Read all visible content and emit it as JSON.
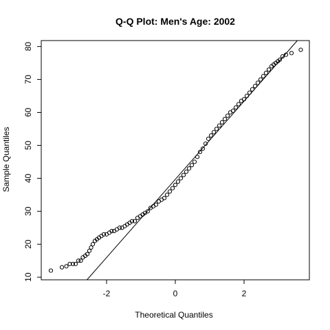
{
  "chart_data": {
    "type": "scatter",
    "title": "Q-Q Plot: Men's Age:  2002",
    "xlabel": "Theoretical Quantiles",
    "ylabel": "Sample Quantiles",
    "xlim": [
      -3.9,
      3.9
    ],
    "ylim": [
      9.2,
      81.8
    ],
    "x_ticks": [
      -2,
      0,
      2
    ],
    "y_ticks": [
      10,
      20,
      30,
      40,
      50,
      60,
      70,
      80
    ],
    "x_tick_labels": [
      "-2",
      "0",
      "2"
    ],
    "y_tick_labels": [
      "10",
      "20",
      "30",
      "40",
      "50",
      "60",
      "70",
      "80"
    ],
    "grid": false,
    "legend": "none",
    "point_marker": "open-circle",
    "point_color": "#000000",
    "reference_line": {
      "x": [
        -2.57,
        3.55
      ],
      "y": [
        9.2,
        81.8
      ]
    },
    "series": [
      {
        "points": [
          [
            -3.62,
            12.0
          ],
          [
            -3.3,
            13.0
          ],
          [
            -3.17,
            13.3
          ],
          [
            -3.07,
            14.0
          ],
          [
            -2.98,
            14.0
          ],
          [
            -2.9,
            14.0
          ],
          [
            -2.82,
            15.0
          ],
          [
            -2.75,
            15.0
          ],
          [
            -2.69,
            16.0
          ],
          [
            -2.62,
            16.5
          ],
          [
            -2.56,
            17.0
          ],
          [
            -2.5,
            18.0
          ],
          [
            -2.45,
            19.0
          ],
          [
            -2.4,
            20.0
          ],
          [
            -2.34,
            21.0
          ],
          [
            -2.28,
            21.5
          ],
          [
            -2.22,
            22.0
          ],
          [
            -2.15,
            22.5
          ],
          [
            -2.08,
            23.0
          ],
          [
            -2.0,
            23.0
          ],
          [
            -1.92,
            23.5
          ],
          [
            -1.85,
            24.0
          ],
          [
            -1.78,
            24.0
          ],
          [
            -1.7,
            24.5
          ],
          [
            -1.62,
            25.0
          ],
          [
            -1.55,
            25.0
          ],
          [
            -1.47,
            25.5
          ],
          [
            -1.4,
            26.0
          ],
          [
            -1.33,
            26.5
          ],
          [
            -1.26,
            27.0
          ],
          [
            -1.18,
            27.0
          ],
          [
            -1.1,
            28.0
          ],
          [
            -1.02,
            28.5
          ],
          [
            -0.95,
            29.0
          ],
          [
            -0.88,
            29.5
          ],
          [
            -0.8,
            30.0
          ],
          [
            -0.72,
            31.0
          ],
          [
            -0.64,
            31.5
          ],
          [
            -0.56,
            32.0
          ],
          [
            -0.48,
            33.0
          ],
          [
            -0.4,
            33.5
          ],
          [
            -0.32,
            34.0
          ],
          [
            -0.24,
            35.0
          ],
          [
            -0.16,
            36.0
          ],
          [
            -0.08,
            37.0
          ],
          [
            0.0,
            38.0
          ],
          [
            0.08,
            39.0
          ],
          [
            0.16,
            40.0
          ],
          [
            0.24,
            41.0
          ],
          [
            0.32,
            42.0
          ],
          [
            0.4,
            43.0
          ],
          [
            0.48,
            44.0
          ],
          [
            0.56,
            45.0
          ],
          [
            0.64,
            46.5
          ],
          [
            0.72,
            48.0
          ],
          [
            0.8,
            49.0
          ],
          [
            0.88,
            50.5
          ],
          [
            0.96,
            52.0
          ],
          [
            1.04,
            53.0
          ],
          [
            1.12,
            54.0
          ],
          [
            1.2,
            55.0
          ],
          [
            1.28,
            56.0
          ],
          [
            1.36,
            57.0
          ],
          [
            1.44,
            58.0
          ],
          [
            1.52,
            59.0
          ],
          [
            1.6,
            60.0
          ],
          [
            1.68,
            60.5
          ],
          [
            1.76,
            61.5
          ],
          [
            1.84,
            62.5
          ],
          [
            1.92,
            63.5
          ],
          [
            2.0,
            64.0
          ],
          [
            2.08,
            65.0
          ],
          [
            2.16,
            66.0
          ],
          [
            2.24,
            67.0
          ],
          [
            2.32,
            68.0
          ],
          [
            2.4,
            69.0
          ],
          [
            2.48,
            70.0
          ],
          [
            2.56,
            71.0
          ],
          [
            2.64,
            72.0
          ],
          [
            2.72,
            73.0
          ],
          [
            2.8,
            74.0
          ],
          [
            2.86,
            74.5
          ],
          [
            2.92,
            75.0
          ],
          [
            2.98,
            75.5
          ],
          [
            3.04,
            76.0
          ],
          [
            3.12,
            77.0
          ],
          [
            3.22,
            77.5
          ],
          [
            3.38,
            78.0
          ],
          [
            3.65,
            79.0
          ]
        ]
      }
    ]
  }
}
